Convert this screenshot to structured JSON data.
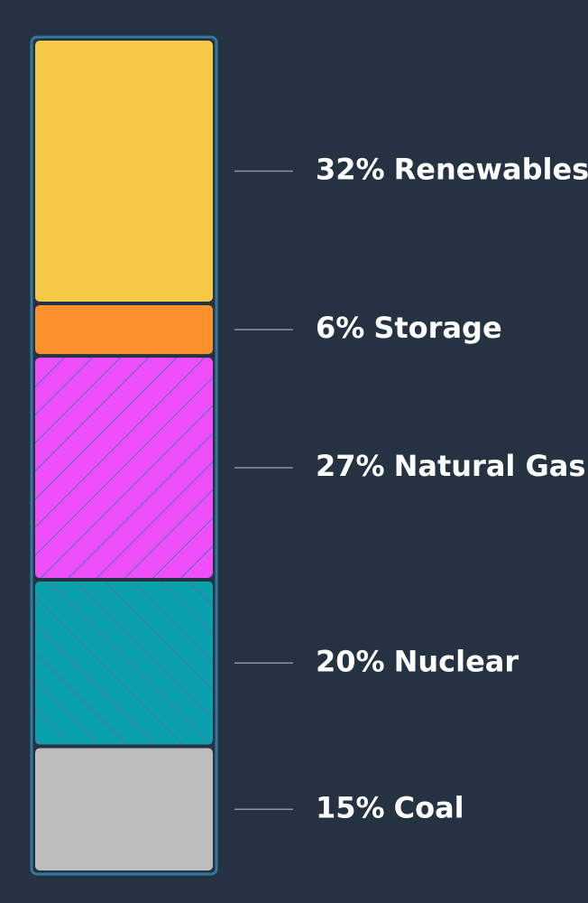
{
  "chart_data": {
    "type": "stacked-column",
    "categories": [
      "Renewables",
      "Storage",
      "Natural Gas",
      "Nuclear",
      "Coal"
    ],
    "values": [
      32,
      6,
      27,
      20,
      15
    ],
    "value_labels": [
      "32%",
      "6%",
      "27%",
      "20%",
      "15%"
    ],
    "colors": [
      "#f5c947",
      "#fb912c",
      "#ee4ffb",
      "#0aa0ac",
      "#bdbdbd"
    ],
    "hatch": [
      null,
      null,
      "diagonal-down",
      "diagonal-up",
      null
    ]
  }
}
